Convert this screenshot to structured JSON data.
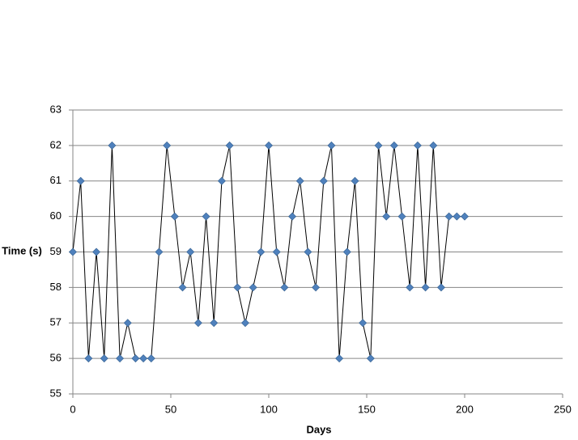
{
  "chart_data": {
    "type": "scatter",
    "x_label": "Days",
    "y_label": "Time (s)",
    "series": [
      {
        "color": "#4f81bd",
        "line_color": "#000000",
        "x": [
          0,
          4,
          8,
          12,
          16,
          20,
          24,
          28,
          32,
          36,
          40,
          44,
          48,
          52,
          56,
          60,
          64,
          68,
          72,
          76,
          80,
          84,
          88,
          92,
          96,
          100,
          104,
          108,
          112,
          116,
          120,
          124,
          128,
          132,
          136,
          140,
          144,
          148,
          152,
          156,
          160,
          164,
          168,
          172,
          176,
          180,
          184,
          188,
          192,
          196,
          200
        ],
        "values": [
          59,
          61,
          56,
          59,
          56,
          62,
          56,
          57,
          56,
          56,
          56,
          59,
          62,
          60,
          58,
          59,
          57,
          60,
          57,
          61,
          62,
          58,
          57,
          58,
          59,
          62,
          59,
          58,
          60,
          61,
          59,
          58,
          61,
          62,
          56,
          59,
          61,
          57,
          56,
          62,
          60,
          62,
          60,
          58,
          62,
          58,
          62,
          58,
          60,
          60,
          60
        ]
      }
    ],
    "xlim": [
      0,
      250
    ],
    "xticks": [
      0,
      50,
      100,
      150,
      200,
      250
    ],
    "ylim": [
      55,
      63
    ],
    "yticks": [
      55,
      56,
      57,
      58,
      59,
      60,
      61,
      62,
      63
    ],
    "grid": true
  }
}
